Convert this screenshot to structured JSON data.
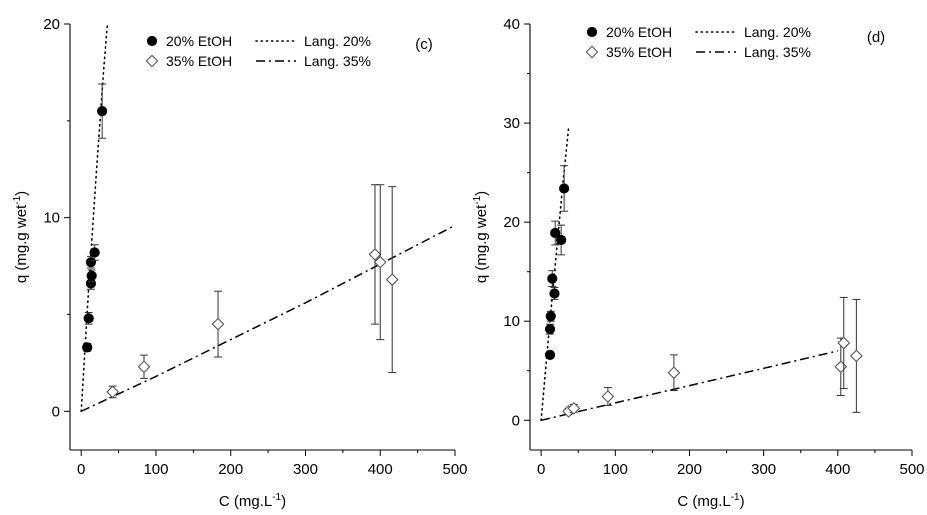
{
  "chart_data": [
    {
      "type": "scatter",
      "panel_label": "(c)",
      "xlabel": "C (mg.L",
      "xlabel_sup": "-1",
      "xlabel_tail": ")",
      "ylabel": "q (mg.g wet",
      "ylabel_sup": "-1",
      "ylabel_tail": ")",
      "xlim": [
        -15,
        500
      ],
      "ylim": [
        -2,
        20
      ],
      "xticks": [
        0,
        100,
        200,
        300,
        400,
        500
      ],
      "yticks": [
        0,
        10,
        20
      ],
      "legend_placement": "top",
      "series": [
        {
          "name": "20% EtOH",
          "kind": "points",
          "marker": "filled-circle",
          "points": [
            {
              "x": 8,
              "y": 3.3,
              "err": 0.2
            },
            {
              "x": 10,
              "y": 4.8,
              "err": 0.3
            },
            {
              "x": 13,
              "y": 6.6,
              "err": 0.3
            },
            {
              "x": 14,
              "y": 7.0,
              "err": 0.3
            },
            {
              "x": 13,
              "y": 7.7,
              "err": 0.3
            },
            {
              "x": 18,
              "y": 8.2,
              "err": 0.4
            },
            {
              "x": 28,
              "y": 15.5,
              "err": 1.4
            }
          ]
        },
        {
          "name": "35% EtOH",
          "kind": "points",
          "marker": "open-diamond",
          "points": [
            {
              "x": 42,
              "y": 1.0,
              "err": 0.3
            },
            {
              "x": 84,
              "y": 2.3,
              "err": 0.6
            },
            {
              "x": 183,
              "y": 4.5,
              "err": 1.7
            },
            {
              "x": 393,
              "y": 8.1,
              "err": 3.6
            },
            {
              "x": 400,
              "y": 7.7,
              "err": 4.0
            },
            {
              "x": 416,
              "y": 6.8,
              "err": 4.8
            }
          ]
        },
        {
          "name": "Lang. 20%",
          "kind": "line",
          "style": "dotted",
          "points": [
            {
              "x": 0,
              "y": 0
            },
            {
              "x": 10,
              "y": 6.4
            },
            {
              "x": 20,
              "y": 12.2
            },
            {
              "x": 30,
              "y": 17.6
            },
            {
              "x": 35,
              "y": 20.0
            }
          ]
        },
        {
          "name": "Lang. 35%",
          "kind": "line",
          "style": "dash-dot",
          "points": [
            {
              "x": 0,
              "y": 0
            },
            {
              "x": 100,
              "y": 1.8
            },
            {
              "x": 200,
              "y": 3.7
            },
            {
              "x": 300,
              "y": 5.6
            },
            {
              "x": 400,
              "y": 7.6
            },
            {
              "x": 500,
              "y": 9.6
            }
          ]
        }
      ]
    },
    {
      "type": "scatter",
      "panel_label": "(d)",
      "xlabel": "C (mg.L",
      "xlabel_sup": "-1",
      "xlabel_tail": ")",
      "ylabel": "q (mg.g wet",
      "ylabel_sup": "-1",
      "ylabel_tail": ")",
      "xlim": [
        -15,
        500
      ],
      "ylim": [
        -3,
        40
      ],
      "xticks": [
        0,
        100,
        200,
        300,
        400,
        500
      ],
      "yticks": [
        0,
        10,
        20,
        30,
        40
      ],
      "legend_placement": "top",
      "series": [
        {
          "name": "20% EtOH",
          "kind": "points",
          "marker": "filled-circle",
          "points": [
            {
              "x": 12,
              "y": 6.6,
              "err": 0.3
            },
            {
              "x": 12,
              "y": 9.2,
              "err": 0.5
            },
            {
              "x": 13,
              "y": 10.5,
              "err": 0.5
            },
            {
              "x": 18,
              "y": 12.8,
              "err": 0.6
            },
            {
              "x": 15,
              "y": 14.3,
              "err": 0.8
            },
            {
              "x": 19,
              "y": 18.9,
              "err": 1.2
            },
            {
              "x": 27,
              "y": 18.2,
              "err": 1.5
            },
            {
              "x": 31,
              "y": 23.4,
              "err": 2.3
            }
          ]
        },
        {
          "name": "35% EtOH",
          "kind": "points",
          "marker": "open-diamond",
          "points": [
            {
              "x": 37,
              "y": 0.9,
              "err": 0.3
            },
            {
              "x": 44,
              "y": 1.2,
              "err": 0.4
            },
            {
              "x": 90,
              "y": 2.4,
              "err": 0.9
            },
            {
              "x": 179,
              "y": 4.8,
              "err": 1.8
            },
            {
              "x": 404,
              "y": 5.4,
              "err": 2.9
            },
            {
              "x": 408,
              "y": 7.8,
              "err": 4.6
            },
            {
              "x": 425,
              "y": 6.5,
              "err": 5.7
            }
          ]
        },
        {
          "name": "Lang. 20%",
          "kind": "line",
          "style": "dotted",
          "points": [
            {
              "x": 0,
              "y": 0
            },
            {
              "x": 10,
              "y": 8.4
            },
            {
              "x": 20,
              "y": 16.5
            },
            {
              "x": 30,
              "y": 24.4
            },
            {
              "x": 37,
              "y": 29.5
            }
          ]
        },
        {
          "name": "Lang. 35%",
          "kind": "line",
          "style": "dash-dot",
          "points": [
            {
              "x": 0,
              "y": 0
            },
            {
              "x": 100,
              "y": 1.75
            },
            {
              "x": 200,
              "y": 3.5
            },
            {
              "x": 300,
              "y": 5.25
            },
            {
              "x": 400,
              "y": 7.0
            }
          ]
        }
      ]
    }
  ]
}
